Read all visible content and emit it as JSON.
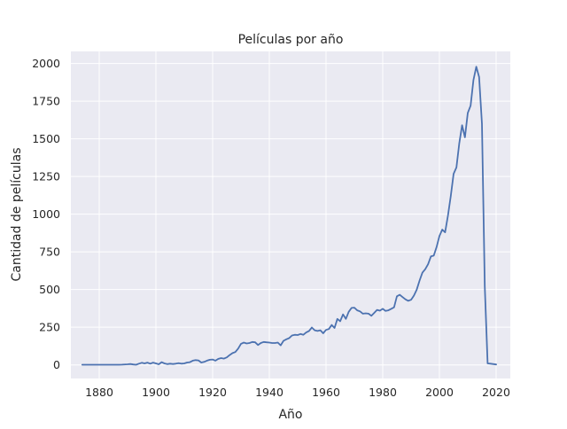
{
  "chart_data": {
    "type": "line",
    "title": "Películas por año",
    "xlabel": "Año",
    "ylabel": "Cantidad de películas",
    "xlim": [
      1870,
      2025
    ],
    "ylim": [
      -90,
      2080
    ],
    "xticks": [
      1880,
      1900,
      1920,
      1940,
      1960,
      1980,
      2000,
      2020
    ],
    "yticks": [
      0,
      250,
      500,
      750,
      1000,
      1250,
      1500,
      1750,
      2000
    ],
    "grid": true,
    "colors": {
      "background": "#eaeaf2",
      "grid": "#ffffff",
      "line": "#4c72b0"
    },
    "series": [
      {
        "x": [
          1874,
          1878,
          1883,
          1887,
          1888,
          1890,
          1891,
          1892,
          1893,
          1894,
          1895,
          1896,
          1897,
          1898,
          1899,
          1900,
          1901,
          1902,
          1903,
          1904,
          1905,
          1906,
          1907,
          1908,
          1909,
          1910,
          1911,
          1912,
          1913,
          1914,
          1915,
          1916,
          1917,
          1918,
          1919,
          1920,
          1921,
          1922,
          1923,
          1924,
          1925,
          1926,
          1927,
          1928,
          1929,
          1930,
          1931,
          1932,
          1933,
          1934,
          1935,
          1936,
          1937,
          1938,
          1939,
          1940,
          1941,
          1942,
          1943,
          1944,
          1945,
          1946,
          1947,
          1948,
          1949,
          1950,
          1951,
          1952,
          1953,
          1954,
          1955,
          1956,
          1957,
          1958,
          1959,
          1960,
          1961,
          1962,
          1963,
          1964,
          1965,
          1966,
          1967,
          1968,
          1969,
          1970,
          1971,
          1972,
          1973,
          1974,
          1975,
          1976,
          1977,
          1978,
          1979,
          1980,
          1981,
          1982,
          1983,
          1984,
          1985,
          1986,
          1987,
          1988,
          1989,
          1990,
          1991,
          1992,
          1993,
          1994,
          1995,
          1996,
          1997,
          1998,
          1999,
          2000,
          2001,
          2002,
          2003,
          2004,
          2005,
          2006,
          2007,
          2008,
          2009,
          2010,
          2011,
          2012,
          2013,
          2014,
          2015,
          2016,
          2017,
          2018,
          2020
        ],
        "y": [
          1,
          1,
          1,
          1,
          2,
          4,
          6,
          3,
          1,
          8,
          14,
          10,
          15,
          8,
          15,
          10,
          4,
          18,
          10,
          5,
          8,
          6,
          8,
          12,
          8,
          10,
          16,
          18,
          28,
          32,
          30,
          16,
          20,
          28,
          34,
          36,
          28,
          40,
          45,
          42,
          50,
          65,
          78,
          85,
          108,
          140,
          148,
          142,
          145,
          152,
          150,
          132,
          145,
          152,
          150,
          148,
          145,
          145,
          148,
          130,
          160,
          170,
          178,
          195,
          200,
          198,
          205,
          200,
          215,
          225,
          248,
          230,
          225,
          230,
          210,
          232,
          238,
          265,
          245,
          305,
          290,
          335,
          305,
          352,
          378,
          380,
          362,
          355,
          340,
          342,
          340,
          326,
          345,
          365,
          360,
          372,
          358,
          362,
          372,
          382,
          455,
          465,
          450,
          435,
          425,
          432,
          460,
          500,
          560,
          612,
          635,
          668,
          720,
          725,
          782,
          855,
          898,
          880,
          990,
          1120,
          1268,
          1310,
          1470,
          1590,
          1510,
          1672,
          1720,
          1890,
          1978,
          1910,
          1600,
          520,
          10,
          8,
          3
        ]
      }
    ]
  }
}
